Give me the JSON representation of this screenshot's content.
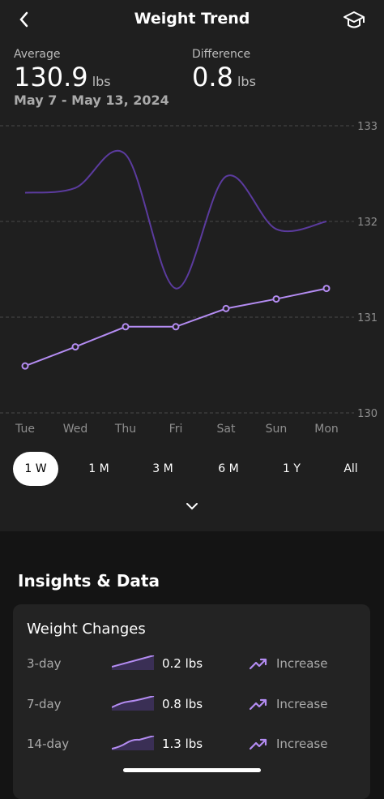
{
  "header": {
    "title": "Weight Trend"
  },
  "summary": {
    "average_label": "Average",
    "average": "130.9",
    "average_unit": "lbs",
    "difference_label": "Difference",
    "difference": "0.8",
    "difference_unit": "lbs",
    "date_range": "May 7 - May 13, 2024"
  },
  "chart_data": {
    "type": "line",
    "categories": [
      "Tue",
      "Wed",
      "Thu",
      "Fri",
      "Sat",
      "Sun",
      "Mon"
    ],
    "series": [
      {
        "color": "#5b3b9e",
        "smooth": true,
        "markers": false,
        "values": [
          132.3,
          132.35,
          132.7,
          131.3,
          132.47,
          131.92,
          132.0
        ]
      },
      {
        "color": "#b48cf2",
        "smooth": false,
        "markers": true,
        "values": [
          130.49,
          130.69,
          130.9,
          130.9,
          131.09,
          131.19,
          131.3
        ]
      }
    ],
    "ylim": [
      130,
      133
    ],
    "yticks": [
      130,
      131,
      132,
      133
    ],
    "grid": true
  },
  "ranges": {
    "options": [
      "1 W",
      "1 M",
      "3 M",
      "6 M",
      "1 Y",
      "All"
    ],
    "selected": 0
  },
  "insights": {
    "title": "Insights & Data",
    "card_title": "Weight Changes",
    "rows": [
      {
        "period": "3-day",
        "change": "0.2 lbs",
        "trend": "Increase"
      },
      {
        "period": "7-day",
        "change": "0.8 lbs",
        "trend": "Increase"
      },
      {
        "period": "14-day",
        "change": "1.3 lbs",
        "trend": "Increase"
      }
    ]
  }
}
